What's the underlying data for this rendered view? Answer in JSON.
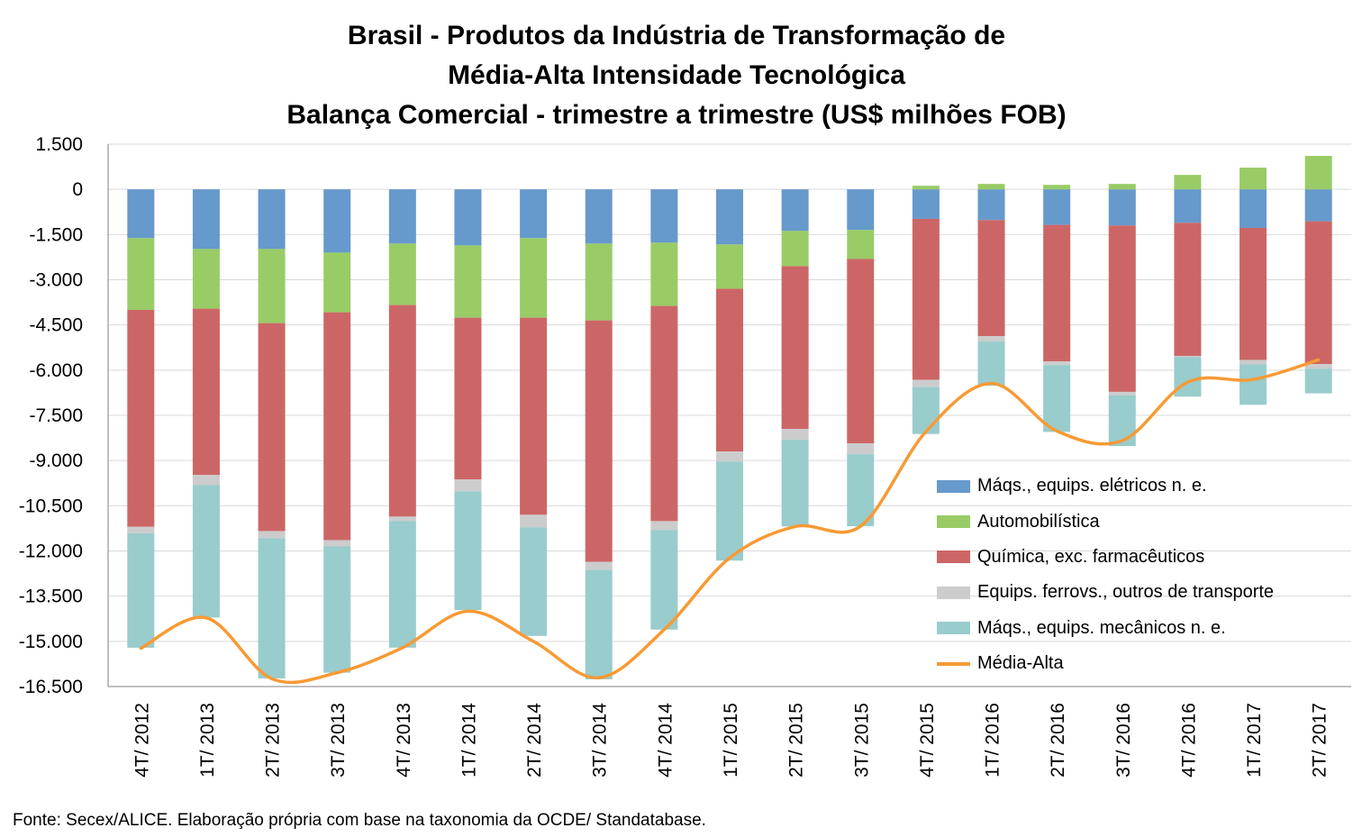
{
  "title_lines": [
    "Brasil - Produtos da Indústria de Transformação de",
    "Média-Alta Intensidade Tecnológica",
    "Balança Comercial - trimestre a trimestre (US$ milhões FOB)"
  ],
  "source": "Fonte: Secex/ALICE. Elaboração própria com base na taxonomia da OCDE/ Standatabase.",
  "legend": [
    {
      "label": "Máqs., equips. elétricos n. e.",
      "color": "#6699CC",
      "kind": "bar"
    },
    {
      "label": "Automobilística",
      "color": "#99CC66",
      "kind": "bar"
    },
    {
      "label": "Química, exc. farmacêuticos",
      "color": "#CC6666",
      "kind": "bar"
    },
    {
      "label": "Equips. ferrovs., outros de transporte",
      "color": "#CCCCCC",
      "kind": "bar"
    },
    {
      "label": "Máqs., equips. mecânicos  n. e.",
      "color": "#99CCCC",
      "kind": "bar"
    },
    {
      "label": "Média-Alta",
      "color": "#F79A35",
      "kind": "line"
    }
  ],
  "chart_data": {
    "type": "bar",
    "stacked": true,
    "categories": [
      "4T/ 2012",
      "1T/ 2013",
      "2T/ 2013",
      "3T/ 2013",
      "4T/ 2013",
      "1T/ 2014",
      "2T/ 2014",
      "3T/ 2014",
      "4T/ 2014",
      "1T/ 2015",
      "2T/ 2015",
      "3T/ 2015",
      "4T/ 2015",
      "1T/ 2016",
      "2T/ 2016",
      "3T/ 2016",
      "4T/ 2016",
      "1T/ 2017",
      "2T/ 2017"
    ],
    "ylim": [
      -16500,
      1500
    ],
    "yticks": [
      1500,
      0,
      -1500,
      -3000,
      -4500,
      -6000,
      -7500,
      -9000,
      -10500,
      -12000,
      -13500,
      -15000,
      -16500
    ],
    "ytick_labels": [
      "1.500",
      "0",
      "-1.500",
      "-3.000",
      "-4.500",
      "-6.000",
      "-7.500",
      "-9.000",
      "-10.500",
      "-12.000",
      "-13.500",
      "-15.000",
      "-16.500"
    ],
    "grid": true,
    "legend_position": "bottom-right",
    "series": [
      {
        "name": "Máqs., equips. elétricos n. e.",
        "color": "#6699CC",
        "values": [
          -1620,
          -1980,
          -1980,
          -2100,
          -1800,
          -1860,
          -1620,
          -1800,
          -1770,
          -1830,
          -1380,
          -1350,
          -980,
          -1020,
          -1180,
          -1200,
          -1110,
          -1280,
          -1060
        ]
      },
      {
        "name": "Automobilística",
        "color": "#99CC66",
        "values": [
          -2380,
          -1980,
          -2460,
          -1980,
          -2040,
          -2400,
          -2640,
          -2550,
          -2100,
          -1470,
          -1170,
          -960,
          120,
          180,
          150,
          180,
          480,
          720,
          1110
        ]
      },
      {
        "name": "Química, exc. farmacêuticos",
        "color": "#CC6666",
        "values": [
          -7200,
          -5520,
          -6900,
          -7560,
          -7020,
          -5370,
          -6540,
          -8010,
          -7140,
          -5400,
          -5400,
          -6120,
          -5340,
          -3850,
          -4530,
          -5520,
          -4420,
          -4380,
          -4740
        ]
      },
      {
        "name": "Equips. ferrovs., outros de transporte",
        "color": "#CCCCCC",
        "values": [
          -210,
          -330,
          -240,
          -210,
          -150,
          -390,
          -420,
          -270,
          -300,
          -330,
          -360,
          -360,
          -240,
          -180,
          -120,
          -120,
          -30,
          -150,
          -150
        ]
      },
      {
        "name": "Máqs., equips. mecânicos  n. e.",
        "color": "#99CCCC",
        "values": [
          -3800,
          -4400,
          -4650,
          -4190,
          -4200,
          -3940,
          -3600,
          -3630,
          -3300,
          -3290,
          -2880,
          -2390,
          -1560,
          -1470,
          -2220,
          -1680,
          -1320,
          -1340,
          -820
        ]
      },
      {
        "name": "Média-Alta",
        "color": "#F79A35",
        "type": "line",
        "values": [
          -15230,
          -14220,
          -16240,
          -16040,
          -15210,
          -14000,
          -15000,
          -16210,
          -14610,
          -12230,
          -11190,
          -11180,
          -8040,
          -6440,
          -8020,
          -8340,
          -6400,
          -6310,
          -5660
        ]
      }
    ]
  }
}
